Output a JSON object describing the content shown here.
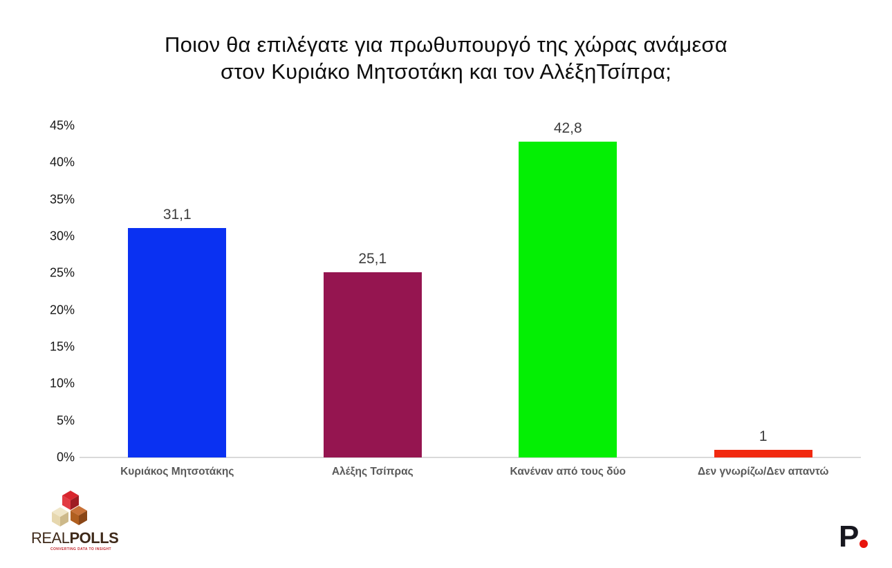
{
  "title": {
    "line1": "Ποιον θα επιλέγατε για πρωθυπουργό της χώρας ανάμεσα",
    "line2": "στον Κυριάκο Μητσοτάκη και τον ΑλέξηΤσίπρα;"
  },
  "chart_data": {
    "type": "bar",
    "title": "Ποιον θα επιλέγατε για πρωθυπουργό της χώρας ανάμεσα στον Κυριάκο Μητσοτάκη και τον ΑλέξηΤσίπρα;",
    "categories": [
      "Κυριάκος Μητσοτάκης",
      "Αλέξης Τσίπρας",
      "Κανέναν από τους δύο",
      "Δεν γνωρίζω/Δεν απαντώ"
    ],
    "values": [
      31.1,
      25.1,
      42.8,
      1
    ],
    "value_labels": [
      "31,1",
      "25,1",
      "42,8",
      "1"
    ],
    "bar_colors": [
      "#0a31f2",
      "#951550",
      "#04ef04",
      "#f1290f"
    ],
    "xlabel": "",
    "ylabel": "",
    "ylim": [
      0,
      45
    ],
    "ytick_step": 5,
    "ytick_suffix": "%",
    "grid": false,
    "legend": false,
    "decimal_separator": ",",
    "axis_line_color": "#d9d9d9"
  },
  "footer": {
    "realpolls": {
      "brand_real": "REAL",
      "brand_polls": "POLLS",
      "tagline": "CONVERTING DATA TO INSIGHT",
      "cube_red": "#c1272d",
      "cube_cream": "#e6d7ae",
      "cube_brown": "#b05f20"
    },
    "protagon": {
      "letter": "P",
      "dot_color": "#e8150d"
    }
  }
}
